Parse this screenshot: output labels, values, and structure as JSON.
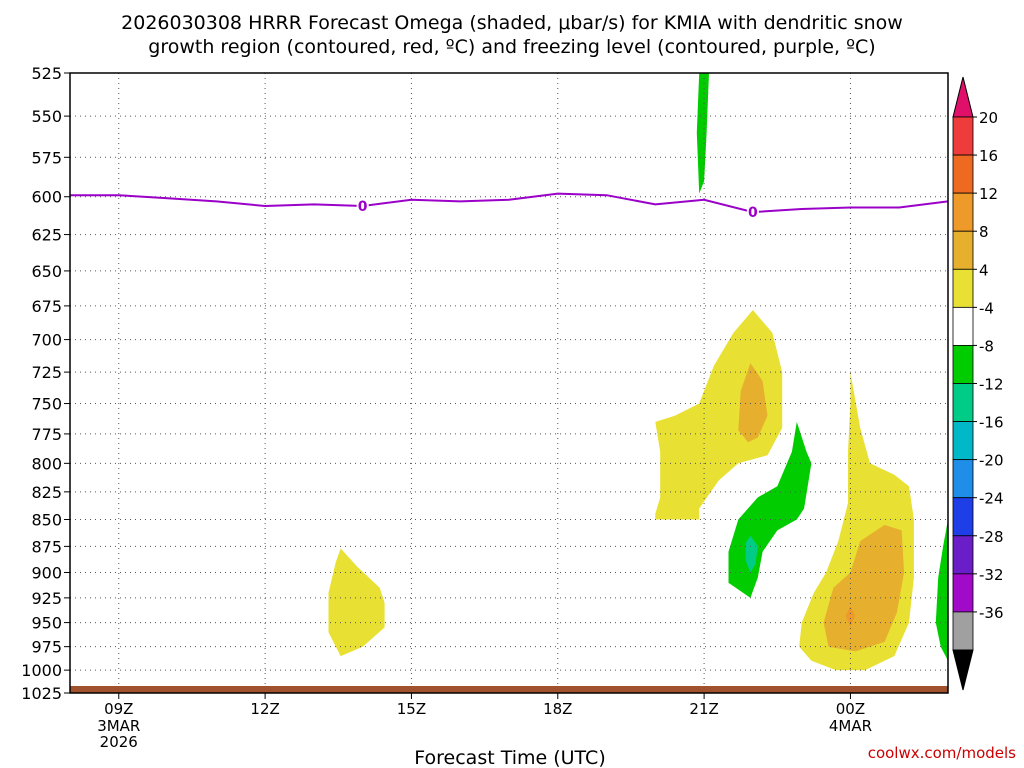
{
  "chart_data": {
    "type": "contour",
    "title_line1": "2026030308 HRRR Forecast Omega (shaded, μbar/s) for KMIA with dendritic snow",
    "title_line2": "growth region (contoured, red, ºC) and freezing level (contoured, purple, ºC)",
    "xlabel": "Forecast Time (UTC)",
    "credit": "coolwx.com/models",
    "y_ticks": [
      "525",
      "550",
      "575",
      "600",
      "625",
      "650",
      "675",
      "700",
      "725",
      "750",
      "775",
      "800",
      "825",
      "850",
      "875",
      "900",
      "925",
      "950",
      "975",
      "1000",
      "1025"
    ],
    "x_ticks": [
      {
        "label": "09Z",
        "hour": 1
      },
      {
        "label": "12Z",
        "hour": 4
      },
      {
        "label": "15Z",
        "hour": 7
      },
      {
        "label": "18Z",
        "hour": 10
      },
      {
        "label": "21Z",
        "hour": 13
      },
      {
        "label": "00Z",
        "hour": 16
      }
    ],
    "date_labels": [
      {
        "hour": 1,
        "lines": [
          "3MAR",
          "2026"
        ]
      },
      {
        "hour": 16,
        "lines": [
          "4MAR"
        ]
      }
    ],
    "x_range_hours": [
      0,
      18
    ],
    "y_range_hpa": [
      525,
      1025
    ],
    "colorbar": {
      "labels": [
        "20",
        "16",
        "12",
        "8",
        "4",
        "-4",
        "-8",
        "-12",
        "-16",
        "-20",
        "-24",
        "-28",
        "-32",
        "-36"
      ],
      "colors": [
        "#e0106a",
        "#ee3b3b",
        "#ee6a22",
        "#ee9a2a",
        "#e6b02e",
        "#e8e032",
        "#ffffff",
        "#00cc00",
        "#00cc88",
        "#00b8c8",
        "#1e8ee8",
        "#1e3ee8",
        "#6a1ec8",
        "#a00ac8",
        "#a0a0a0",
        "#000000"
      ]
    },
    "freezing_level": {
      "label": "0",
      "color": "#9a00c8",
      "points": [
        [
          0,
          599
        ],
        [
          1,
          599
        ],
        [
          2,
          601
        ],
        [
          3,
          603
        ],
        [
          4,
          606
        ],
        [
          5,
          605
        ],
        [
          6,
          606
        ],
        [
          7,
          602
        ],
        [
          8,
          603
        ],
        [
          9,
          602
        ],
        [
          10,
          598
        ],
        [
          11,
          599
        ],
        [
          12,
          605
        ],
        [
          13,
          602
        ],
        [
          14,
          610
        ],
        [
          15,
          608
        ],
        [
          16,
          607
        ],
        [
          17,
          607
        ],
        [
          18,
          603
        ]
      ],
      "label_hours": [
        6.0,
        14.0
      ]
    },
    "omega_regions": [
      {
        "value": "+4",
        "color": "#e8e032",
        "points": [
          [
            5.55,
            877
          ],
          [
            5.9,
            895
          ],
          [
            6.35,
            915
          ],
          [
            6.45,
            930
          ],
          [
            6.45,
            955
          ],
          [
            6.0,
            975
          ],
          [
            5.55,
            985
          ],
          [
            5.3,
            960
          ],
          [
            5.3,
            920
          ],
          [
            5.45,
            890
          ]
        ]
      },
      {
        "value": "+4",
        "color": "#e8e032",
        "points": [
          [
            12.9,
            750
          ],
          [
            13.2,
            720
          ],
          [
            13.6,
            695
          ],
          [
            14.0,
            678
          ],
          [
            14.4,
            695
          ],
          [
            14.6,
            725
          ],
          [
            14.6,
            770
          ],
          [
            14.3,
            793
          ],
          [
            13.7,
            800
          ],
          [
            13.3,
            815
          ],
          [
            12.9,
            840
          ],
          [
            12.9,
            850
          ],
          [
            12.0,
            850
          ],
          [
            12.0,
            845
          ],
          [
            12.1,
            830
          ],
          [
            12.1,
            790
          ],
          [
            12.0,
            765
          ],
          [
            12.4,
            760
          ]
        ]
      },
      {
        "value": "+8",
        "color": "#e6b02e",
        "points": [
          [
            13.95,
            718
          ],
          [
            14.2,
            732
          ],
          [
            14.3,
            760
          ],
          [
            14.1,
            778
          ],
          [
            13.9,
            782
          ],
          [
            13.7,
            772
          ],
          [
            13.75,
            740
          ]
        ]
      },
      {
        "value": "-4",
        "color": "#00cc00",
        "points": [
          [
            12.9,
            525
          ],
          [
            13.1,
            525
          ],
          [
            13.05,
            560
          ],
          [
            13.0,
            590
          ],
          [
            12.9,
            598
          ],
          [
            12.85,
            560
          ]
        ]
      },
      {
        "value": "-4",
        "color": "#00cc00",
        "points": [
          [
            14.9,
            765
          ],
          [
            15.1,
            790
          ],
          [
            15.2,
            800
          ],
          [
            15.05,
            840
          ],
          [
            14.9,
            850
          ],
          [
            14.5,
            860
          ],
          [
            14.2,
            880
          ],
          [
            14.1,
            905
          ],
          [
            13.95,
            925
          ],
          [
            13.5,
            910
          ],
          [
            13.5,
            880
          ],
          [
            13.7,
            850
          ],
          [
            14.1,
            830
          ],
          [
            14.5,
            820
          ],
          [
            14.8,
            790
          ]
        ]
      },
      {
        "value": "-8",
        "color": "#00cc88",
        "points": [
          [
            13.95,
            865
          ],
          [
            14.1,
            875
          ],
          [
            14.05,
            892
          ],
          [
            13.95,
            900
          ],
          [
            13.85,
            888
          ],
          [
            13.85,
            872
          ]
        ]
      },
      {
        "value": "+4",
        "color": "#e8e032",
        "points": [
          [
            16.0,
            725
          ],
          [
            16.2,
            770
          ],
          [
            16.4,
            800
          ],
          [
            16.9,
            810
          ],
          [
            17.2,
            820
          ],
          [
            17.3,
            850
          ],
          [
            17.3,
            905
          ],
          [
            17.2,
            950
          ],
          [
            16.9,
            985
          ],
          [
            16.3,
            1000
          ],
          [
            15.7,
            1000
          ],
          [
            15.2,
            990
          ],
          [
            14.95,
            975
          ],
          [
            15.0,
            950
          ],
          [
            15.25,
            920
          ],
          [
            15.5,
            900
          ],
          [
            15.75,
            870
          ],
          [
            15.95,
            835
          ],
          [
            15.95,
            790
          ],
          [
            16.0,
            750
          ]
        ]
      },
      {
        "value": "+8",
        "color": "#e6b02e",
        "points": [
          [
            16.2,
            870
          ],
          [
            16.7,
            855
          ],
          [
            17.05,
            860
          ],
          [
            17.1,
            900
          ],
          [
            16.95,
            940
          ],
          [
            16.7,
            970
          ],
          [
            16.1,
            980
          ],
          [
            15.55,
            975
          ],
          [
            15.45,
            950
          ],
          [
            15.65,
            915
          ],
          [
            16.0,
            900
          ]
        ]
      },
      {
        "value": "+12",
        "color": "#ee9a2a",
        "points": [
          [
            16.0,
            933
          ],
          [
            16.1,
            943
          ],
          [
            16.0,
            955
          ],
          [
            15.9,
            943
          ]
        ]
      },
      {
        "value": "-4",
        "color": "#00cc00",
        "points": [
          [
            18.0,
            850
          ],
          [
            18.0,
            990
          ],
          [
            17.85,
            975
          ],
          [
            17.75,
            950
          ],
          [
            17.8,
            905
          ],
          [
            17.9,
            875
          ]
        ]
      }
    ]
  }
}
